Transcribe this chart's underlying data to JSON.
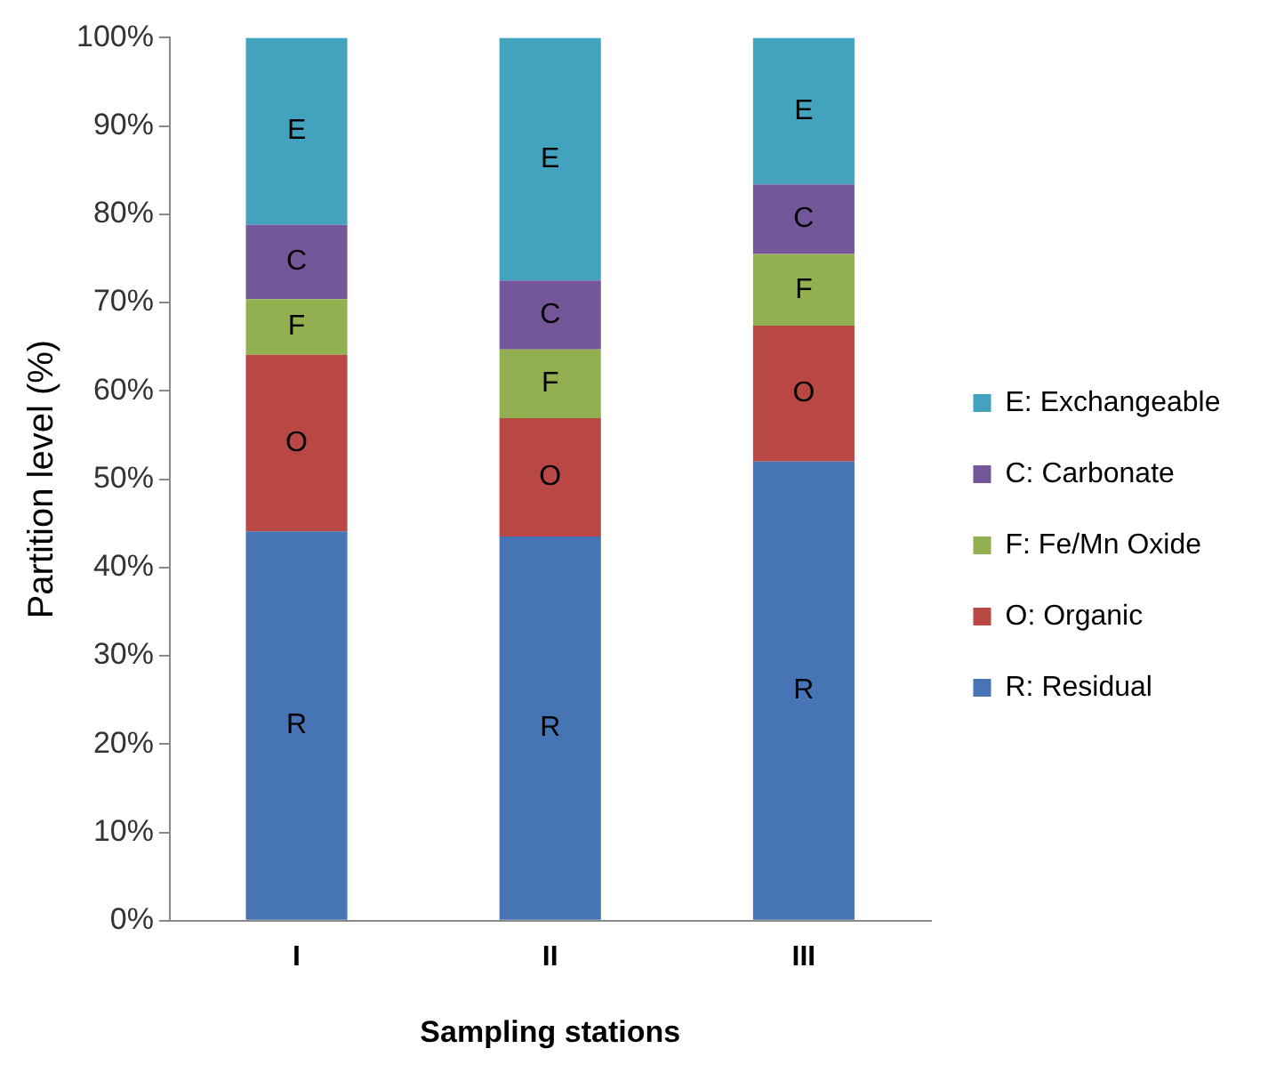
{
  "chart_data": {
    "type": "bar",
    "stacked": true,
    "xlabel": "Sampling stations",
    "ylabel": "Partition level (%)",
    "categories": [
      "I",
      "II",
      "III"
    ],
    "ylim": [
      0,
      100
    ],
    "yticks": [
      {
        "value": 0,
        "label": "0%"
      },
      {
        "value": 10,
        "label": "10%"
      },
      {
        "value": 20,
        "label": "20%"
      },
      {
        "value": 30,
        "label": "30%"
      },
      {
        "value": 40,
        "label": "40%"
      },
      {
        "value": 50,
        "label": "50%"
      },
      {
        "value": 60,
        "label": "60%"
      },
      {
        "value": 70,
        "label": "70%"
      },
      {
        "value": 80,
        "label": "80%"
      },
      {
        "value": 90,
        "label": "90%"
      },
      {
        "value": 100,
        "label": "100%"
      }
    ],
    "grid": false,
    "legend": "right",
    "series": [
      {
        "name": "R: Residual",
        "color": "#4674b4",
        "values": [
          44.1,
          43.5,
          52.0
        ],
        "value_labels": [
          "R",
          "R",
          "R"
        ]
      },
      {
        "name": "O: Organic",
        "color": "#b94845",
        "values": [
          20.0,
          13.4,
          15.4
        ],
        "value_labels": [
          "O",
          "O",
          "O"
        ]
      },
      {
        "name": "F: Fe/Mn Oxide",
        "color": "#93b050",
        "values": [
          6.3,
          7.8,
          8.1
        ],
        "value_labels": [
          "F",
          "F",
          "F"
        ]
      },
      {
        "name": "C: Carbonate",
        "color": "#735798",
        "values": [
          8.4,
          7.8,
          7.9
        ],
        "value_labels": [
          "C",
          "C",
          "C"
        ]
      },
      {
        "name": "E: Exchangeable",
        "color": "#43a3bf",
        "values": [
          21.2,
          27.5,
          16.6
        ],
        "value_labels": [
          "E",
          "E",
          "E"
        ]
      }
    ]
  }
}
